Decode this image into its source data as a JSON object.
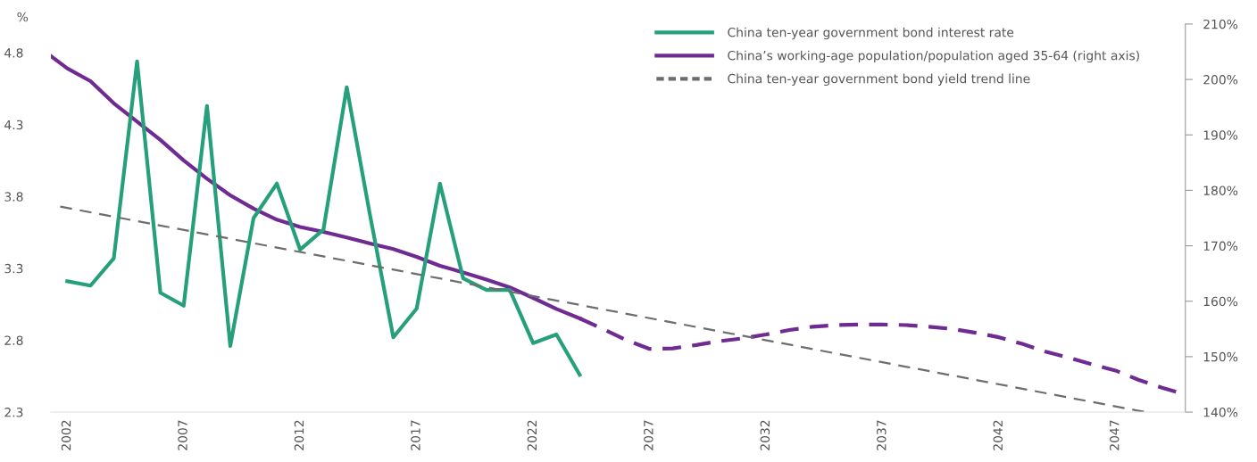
{
  "chart_data": {
    "type": "line",
    "ylabel": "%",
    "xlim": [
      2001.3,
      2050
    ],
    "xticks": [
      2002,
      2007,
      2012,
      2017,
      2022,
      2027,
      2032,
      2037,
      2042,
      2047
    ],
    "ylim": [
      2.3,
      5.0
    ],
    "yticks": [
      2.3,
      2.8,
      3.3,
      3.8,
      4.3,
      4.8
    ],
    "y2lim": [
      140,
      210
    ],
    "y2ticks": [
      {
        "value": 140,
        "label": "140%"
      },
      {
        "value": 150,
        "label": "150%"
      },
      {
        "value": 160,
        "label": "160%"
      },
      {
        "value": 170,
        "label": "170%"
      },
      {
        "value": 180,
        "label": "180%"
      },
      {
        "value": 190,
        "label": "190%"
      },
      {
        "value": 200,
        "label": "200%"
      },
      {
        "value": 210,
        "label": "210%"
      }
    ],
    "grid": false,
    "legend": "top right",
    "marker": "none",
    "series": [
      {
        "name": "China ten-year government bond interest rate",
        "color": "#26a07a",
        "line_style": "solid",
        "x": [
          2002,
          2003,
          2004,
          2005,
          2006,
          2007,
          2008,
          2009,
          2010,
          2011,
          2012,
          2013,
          2014,
          2015,
          2016,
          2017,
          2018,
          2019,
          2020,
          2021,
          2022,
          2023,
          2024
        ],
        "values": [
          3.21,
          3.18,
          3.37,
          4.74,
          3.13,
          3.04,
          4.43,
          2.76,
          3.65,
          3.89,
          3.43,
          3.57,
          4.56,
          3.67,
          2.82,
          3.02,
          3.89,
          3.23,
          3.15,
          3.15,
          2.78,
          2.84,
          2.56
        ]
      },
      {
        "name": "China’s working-age population/population aged 35-64 (right axis)",
        "color": "#6f2b91",
        "line_style": "solid",
        "axis": "y2",
        "x": [
          2001.3,
          2002,
          2003,
          2004,
          2005,
          2006,
          2007,
          2008,
          2009,
          2010,
          2011,
          2012,
          2013,
          2014,
          2015,
          2016,
          2017,
          2018,
          2019,
          2020,
          2021,
          2022,
          2023,
          2024
        ],
        "values": [
          204.2,
          202.0,
          199.7,
          195.7,
          192.4,
          189.1,
          185.4,
          182.1,
          179.1,
          176.7,
          174.7,
          173.4,
          172.5,
          171.5,
          170.4,
          169.4,
          168.0,
          166.4,
          165.2,
          163.9,
          162.5,
          160.6,
          158.6,
          156.9
        ]
      },
      {
        "color": "#6f2b91",
        "line_style": "dashed",
        "axis": "y2",
        "x": [
          2024,
          2025,
          2026,
          2027,
          2028,
          2029,
          2030,
          2031,
          2032,
          2033,
          2034,
          2035,
          2036,
          2037,
          2038,
          2039,
          2040,
          2041,
          2042,
          2043,
          2044,
          2045,
          2046,
          2047,
          2048,
          2049,
          2050
        ],
        "values": [
          156.9,
          155.0,
          153.0,
          151.4,
          151.5,
          152.1,
          152.8,
          153.3,
          154.0,
          154.8,
          155.4,
          155.7,
          155.8,
          155.8,
          155.7,
          155.4,
          155.0,
          154.3,
          153.5,
          152.3,
          150.9,
          149.8,
          148.6,
          147.5,
          145.8,
          144.4,
          143.2
        ]
      },
      {
        "name": "China ten-year government bond yield trend line",
        "color": "#6d6d6d",
        "line_style": "dashed",
        "x": [
          2001.7,
          2048.3
        ],
        "values": [
          3.73,
          2.3
        ]
      }
    ]
  }
}
